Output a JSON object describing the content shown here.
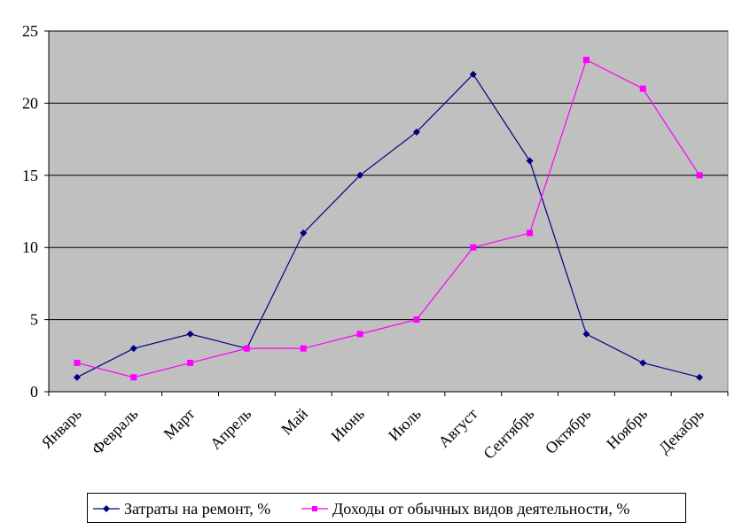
{
  "chart_data": {
    "type": "line",
    "categories": [
      "Январь",
      "Февраль",
      "Март",
      "Апрель",
      "Май",
      "Июнь",
      "Июль",
      "Август",
      "Сентябрь",
      "Октябрь",
      "Ноябрь",
      "Декабрь"
    ],
    "series": [
      {
        "name": "Затраты на ремонт, %",
        "color": "#000080",
        "marker": "diamond",
        "values": [
          1,
          3,
          4,
          3,
          11,
          15,
          18,
          22,
          16,
          4,
          2,
          1
        ]
      },
      {
        "name": "Доходы от обычных видов деятельности, %",
        "color": "#FF00FF",
        "marker": "square",
        "values": [
          2,
          1,
          2,
          3,
          3,
          4,
          5,
          10,
          11,
          23,
          21,
          15
        ]
      }
    ],
    "y_ticks": [
      "0",
      "5",
      "10",
      "15",
      "20",
      "25"
    ],
    "ylim": [
      0,
      25
    ],
    "grid": true,
    "plot_background": "#C0C0C0",
    "legend_position": "bottom"
  }
}
